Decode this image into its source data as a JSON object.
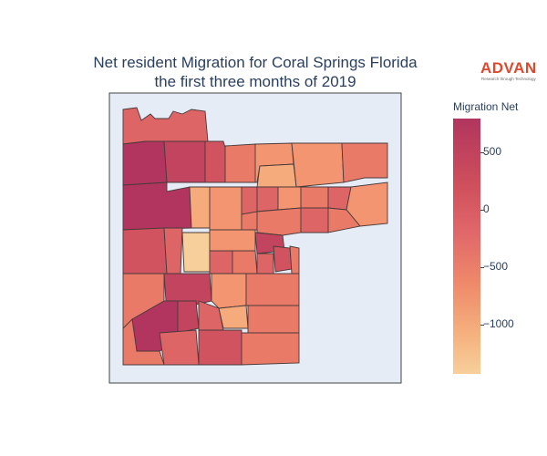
{
  "title": {
    "line1": "Net resident Migration for Coral Springs Florida",
    "line2": "the first three months of 2019"
  },
  "brand": {
    "name": "ADVAN",
    "tagline": "Research through Technology",
    "color": "#e0482d"
  },
  "colorbar": {
    "title": "Migration Net",
    "ticks": [
      "500",
      "0",
      "−500",
      "−1000"
    ],
    "colors": [
      "#b1355e",
      "#cf4f5c",
      "#e1686a",
      "#ef8a6a",
      "#f5b27f",
      "#f7cf9b"
    ]
  },
  "map": {
    "land_color": "#e5ecf6",
    "border_color": "#444444"
  },
  "chart_data": {
    "type": "heatmap",
    "subtype": "choropleth",
    "title": "Net resident Migration for Coral Springs Florida the first three months of 2019",
    "colorbar_title": "Migration Net",
    "colorscale_range": [
      -1400,
      780
    ],
    "colorbar_ticks": [
      500,
      0,
      -500,
      -1000
    ]
  }
}
